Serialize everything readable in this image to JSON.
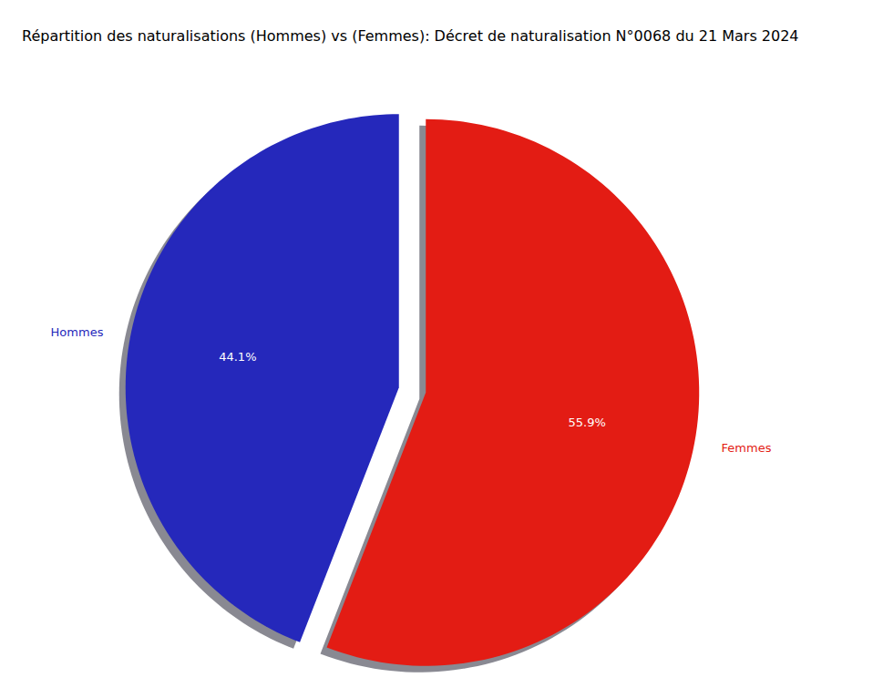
{
  "chart_data": {
    "type": "pie",
    "title": "Répartition des naturalisations (Hommes) vs (Femmes): Décret de naturalisation N°0068 du 21 Mars 2024",
    "categories": [
      "Hommes",
      "Femmes"
    ],
    "values": [
      44.1,
      55.9
    ],
    "value_labels": [
      "44.1%",
      "55.9%"
    ],
    "colors": [
      "#2528bb",
      "#e31c14"
    ],
    "data_labels": true
  }
}
